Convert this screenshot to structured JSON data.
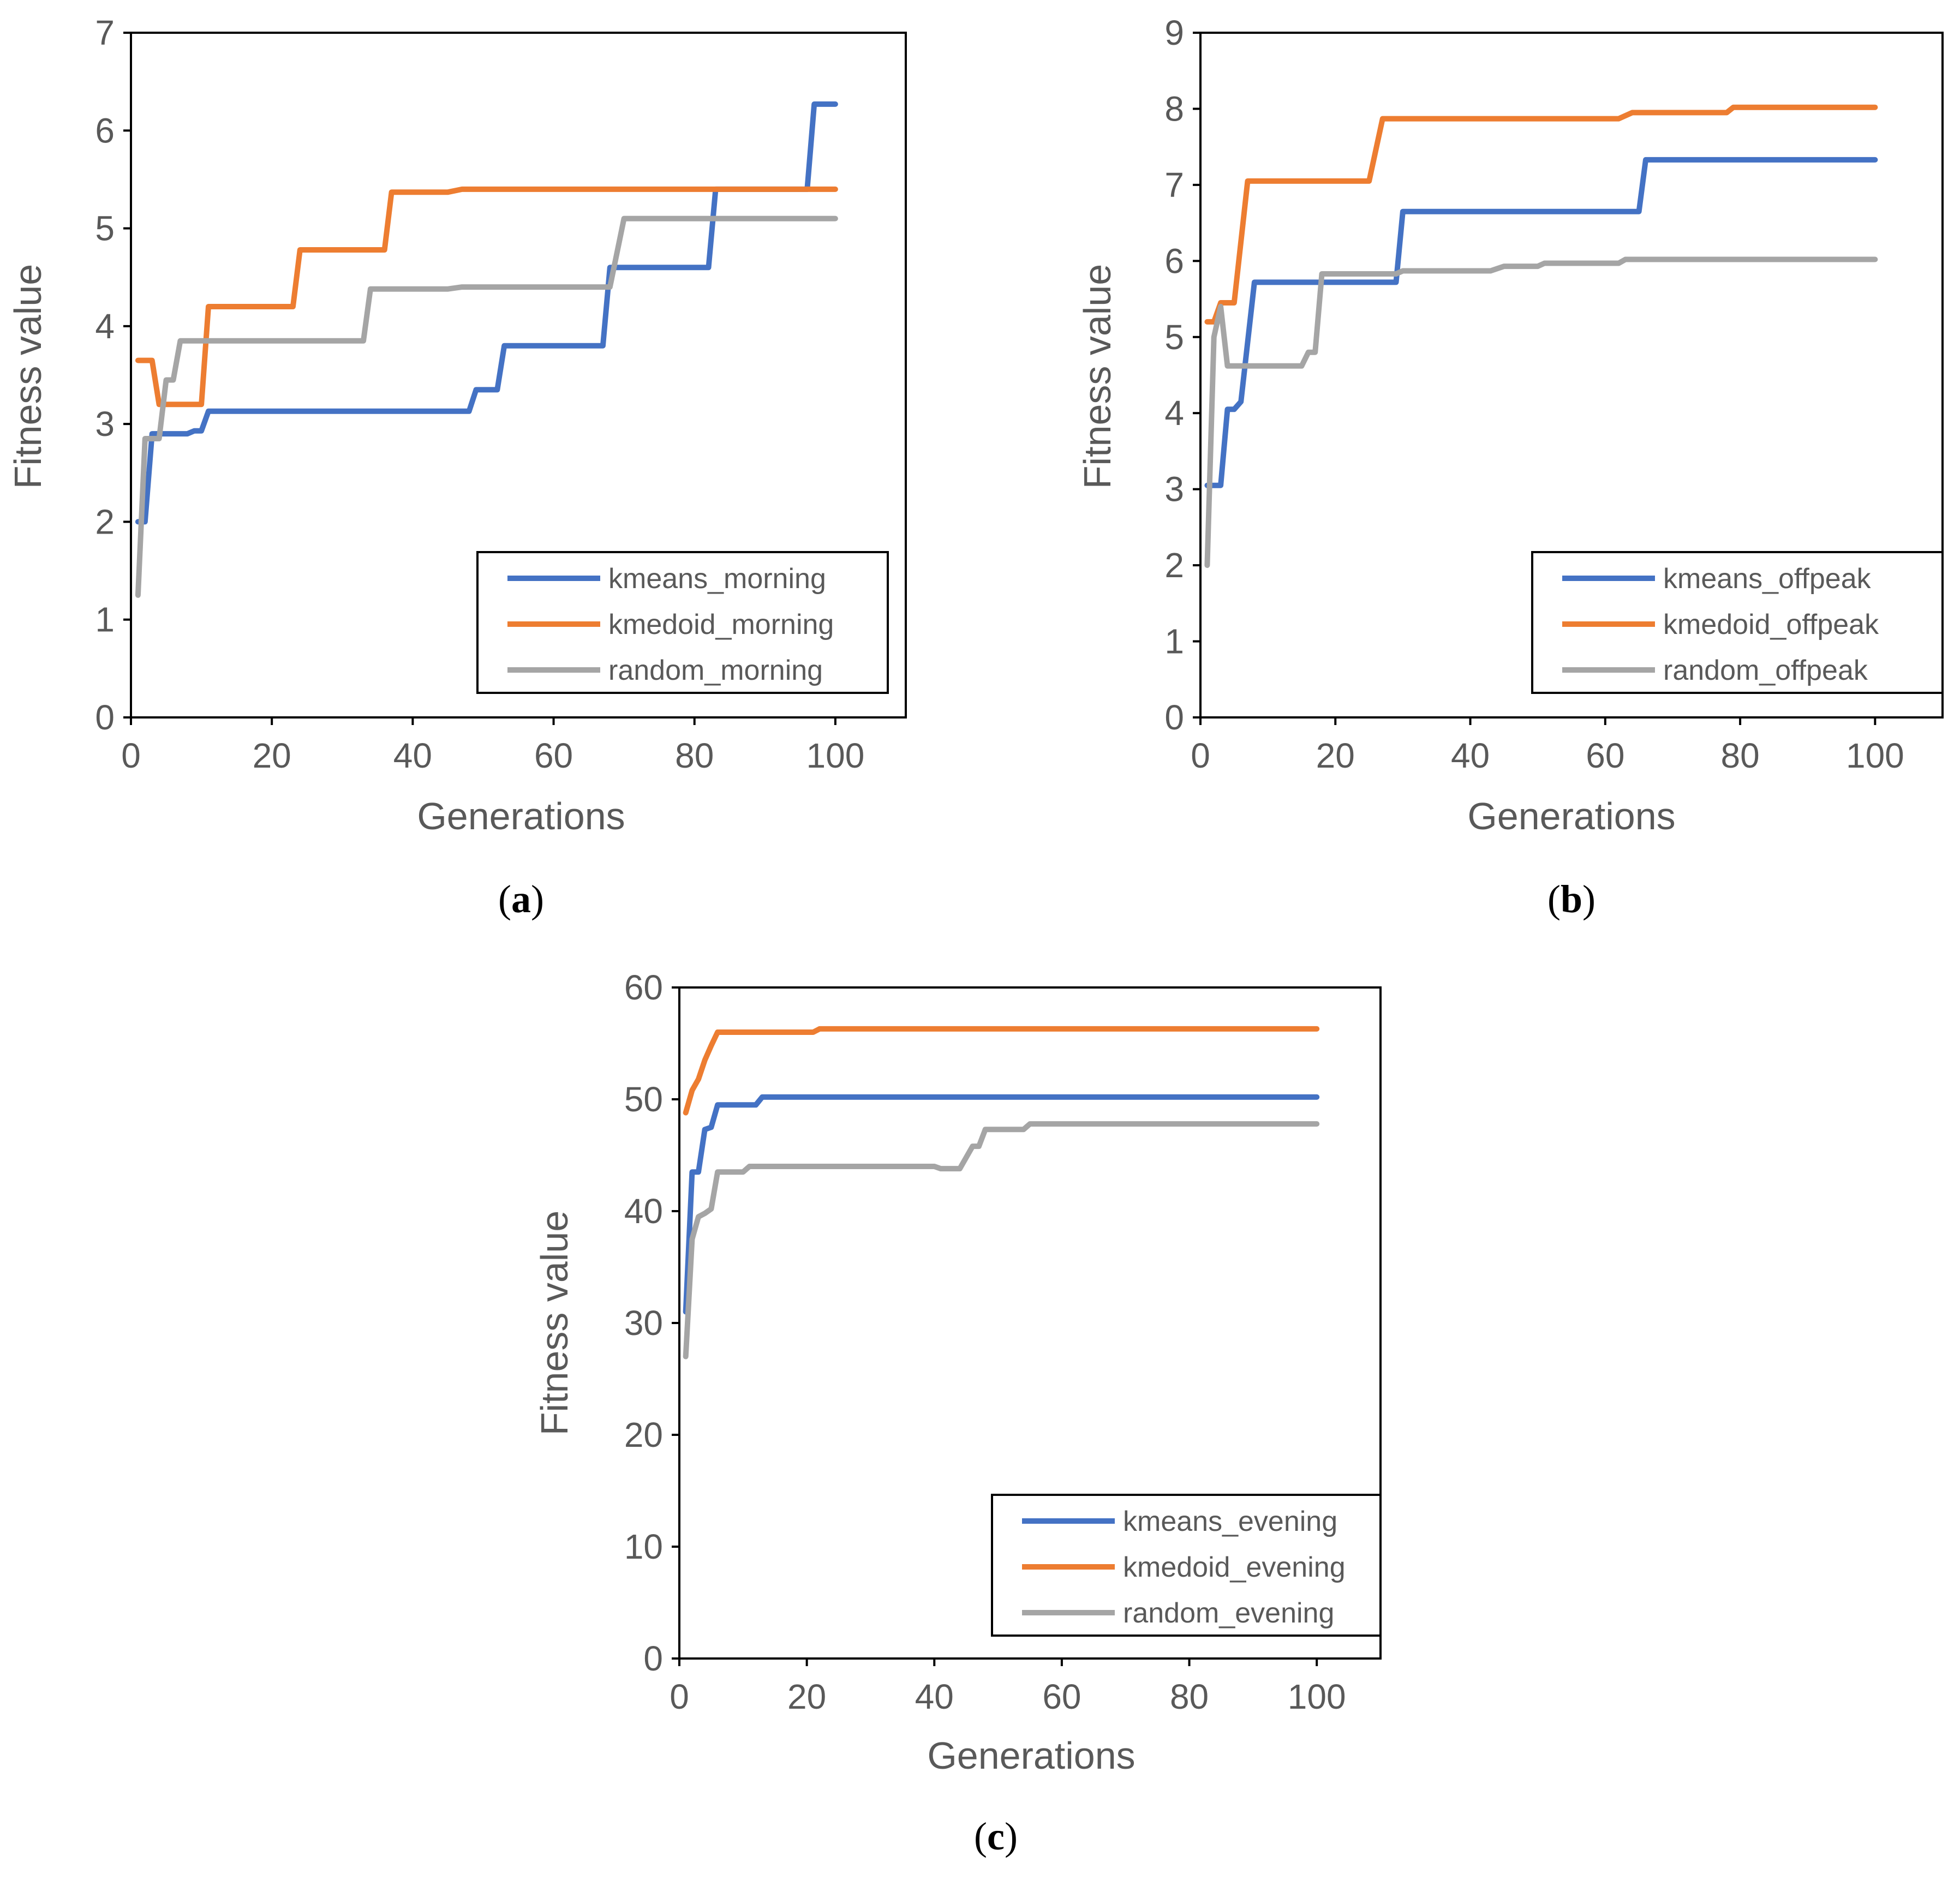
{
  "colors": {
    "kmeans": "#4472C4",
    "kmedoid": "#ED7D31",
    "random": "#A5A5A5",
    "axis": "#000000",
    "text": "#595959"
  },
  "chart_data": [
    {
      "type": "line",
      "panel_label": "a",
      "xlabel": "Generations",
      "ylabel": "Fitness value",
      "xlim": [
        0,
        110
      ],
      "ylim": [
        0,
        7
      ],
      "xticks": [
        0,
        20,
        40,
        60,
        80,
        100
      ],
      "yticks": [
        0,
        1,
        2,
        3,
        4,
        5,
        6,
        7
      ],
      "grid": false,
      "legend_position": "bottom-right",
      "series": [
        {
          "name": "kmeans_morning",
          "color_key": "kmeans",
          "points": [
            [
              1,
              2.0
            ],
            [
              2,
              2.0
            ],
            [
              3,
              2.9
            ],
            [
              8,
              2.9
            ],
            [
              9,
              2.93
            ],
            [
              10,
              2.93
            ],
            [
              11,
              3.13
            ],
            [
              47,
              3.13
            ],
            [
              48,
              3.13
            ],
            [
              49,
              3.35
            ],
            [
              51,
              3.35
            ],
            [
              52,
              3.35
            ],
            [
              53,
              3.8
            ],
            [
              67,
              3.8
            ],
            [
              68,
              4.6
            ],
            [
              82,
              4.6
            ],
            [
              83,
              5.4
            ],
            [
              96,
              5.4
            ],
            [
              97,
              6.27
            ],
            [
              100,
              6.27
            ]
          ]
        },
        {
          "name": "kmedoid_morning",
          "color_key": "kmedoid",
          "points": [
            [
              1,
              3.65
            ],
            [
              3,
              3.65
            ],
            [
              4,
              3.2
            ],
            [
              9,
              3.2
            ],
            [
              10,
              3.2
            ],
            [
              11,
              4.2
            ],
            [
              23,
              4.2
            ],
            [
              24,
              4.78
            ],
            [
              36,
              4.78
            ],
            [
              37,
              5.37
            ],
            [
              45,
              5.37
            ],
            [
              47,
              5.4
            ],
            [
              100,
              5.4
            ]
          ]
        },
        {
          "name": "random_morning",
          "color_key": "random",
          "points": [
            [
              1,
              1.25
            ],
            [
              2,
              2.85
            ],
            [
              4,
              2.85
            ],
            [
              5,
              3.45
            ],
            [
              6,
              3.45
            ],
            [
              7,
              3.85
            ],
            [
              33,
              3.85
            ],
            [
              34,
              4.38
            ],
            [
              45,
              4.38
            ],
            [
              47,
              4.4
            ],
            [
              68,
              4.4
            ],
            [
              70,
              5.1
            ],
            [
              100,
              5.1
            ]
          ]
        }
      ]
    },
    {
      "type": "line",
      "panel_label": "b",
      "xlabel": "Generations",
      "ylabel": "Fitness value",
      "xlim": [
        0,
        110
      ],
      "ylim": [
        0,
        9
      ],
      "xticks": [
        0,
        20,
        40,
        60,
        80,
        100
      ],
      "yticks": [
        0,
        1,
        2,
        3,
        4,
        5,
        6,
        7,
        8,
        9
      ],
      "grid": false,
      "legend_position": "bottom-right",
      "series": [
        {
          "name": "kmeans_offpeak",
          "color_key": "kmeans",
          "points": [
            [
              1,
              3.05
            ],
            [
              3,
              3.05
            ],
            [
              4,
              4.05
            ],
            [
              5,
              4.05
            ],
            [
              6,
              4.15
            ],
            [
              8,
              5.72
            ],
            [
              28,
              5.72
            ],
            [
              29,
              5.72
            ],
            [
              30,
              6.65
            ],
            [
              65,
              6.65
            ],
            [
              66,
              7.33
            ],
            [
              100,
              7.33
            ]
          ]
        },
        {
          "name": "kmedoid_offpeak",
          "color_key": "kmedoid",
          "points": [
            [
              1,
              5.2
            ],
            [
              2,
              5.2
            ],
            [
              3,
              5.45
            ],
            [
              5,
              5.45
            ],
            [
              7,
              7.05
            ],
            [
              25,
              7.05
            ],
            [
              27,
              7.87
            ],
            [
              62,
              7.87
            ],
            [
              64,
              7.95
            ],
            [
              78,
              7.95
            ],
            [
              79,
              8.02
            ],
            [
              100,
              8.02
            ]
          ]
        },
        {
          "name": "random_offpeak",
          "color_key": "random",
          "points": [
            [
              1,
              2.0
            ],
            [
              2,
              5.0
            ],
            [
              3,
              5.4
            ],
            [
              4,
              4.62
            ],
            [
              15,
              4.62
            ],
            [
              16,
              4.8
            ],
            [
              17,
              4.8
            ],
            [
              18,
              5.83
            ],
            [
              29,
              5.83
            ],
            [
              30,
              5.87
            ],
            [
              43,
              5.87
            ],
            [
              45,
              5.93
            ],
            [
              50,
              5.93
            ],
            [
              51,
              5.97
            ],
            [
              62,
              5.97
            ],
            [
              63,
              6.02
            ],
            [
              100,
              6.02
            ]
          ]
        }
      ]
    },
    {
      "type": "line",
      "panel_label": "c",
      "xlabel": "Generations",
      "ylabel": "Fitness value",
      "xlim": [
        0,
        110
      ],
      "ylim": [
        0,
        60
      ],
      "xticks": [
        0,
        20,
        40,
        60,
        80,
        100
      ],
      "yticks": [
        0,
        10,
        20,
        30,
        40,
        50,
        60
      ],
      "grid": false,
      "legend_position": "bottom-right",
      "series": [
        {
          "name": "kmeans_evening",
          "color_key": "kmeans",
          "points": [
            [
              1,
              31.0
            ],
            [
              2,
              43.5
            ],
            [
              3,
              43.5
            ],
            [
              4,
              47.3
            ],
            [
              5,
              47.5
            ],
            [
              6,
              49.5
            ],
            [
              12,
              49.5
            ],
            [
              13,
              50.2
            ],
            [
              100,
              50.2
            ]
          ]
        },
        {
          "name": "kmedoid_evening",
          "color_key": "kmedoid",
          "points": [
            [
              1,
              48.8
            ],
            [
              2,
              50.8
            ],
            [
              3,
              51.8
            ],
            [
              4,
              53.5
            ],
            [
              5,
              54.8
            ],
            [
              6,
              56.0
            ],
            [
              21,
              56.0
            ],
            [
              22,
              56.3
            ],
            [
              100,
              56.3
            ]
          ]
        },
        {
          "name": "random_evening",
          "color_key": "random",
          "points": [
            [
              1,
              27.0
            ],
            [
              2,
              37.5
            ],
            [
              3,
              39.5
            ],
            [
              4,
              39.8
            ],
            [
              5,
              40.2
            ],
            [
              6,
              43.5
            ],
            [
              10,
              43.5
            ],
            [
              11,
              44.0
            ],
            [
              40,
              44.0
            ],
            [
              41,
              43.8
            ],
            [
              44,
              43.8
            ],
            [
              46,
              45.8
            ],
            [
              47,
              45.8
            ],
            [
              48,
              47.3
            ],
            [
              54,
              47.3
            ],
            [
              55,
              47.8
            ],
            [
              100,
              47.8
            ]
          ]
        }
      ]
    }
  ]
}
